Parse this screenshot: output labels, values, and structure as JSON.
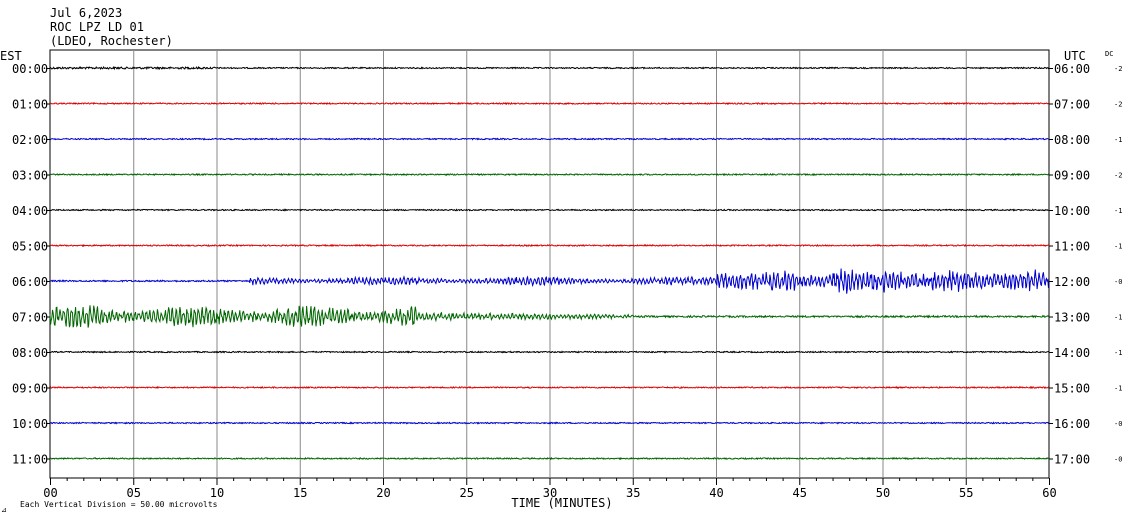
{
  "header": {
    "date": "Jul 6,2023",
    "station": "ROC LPZ LD 01",
    "location": "(LDEO, Rochester)",
    "left_tz": "EST",
    "right_tz": "UTC",
    "dc_label": "DC"
  },
  "footer": {
    "scale_note": "Each Vertical Division =   50.00 microvolts",
    "corner_mark": "⊿"
  },
  "chart_data": {
    "type": "line",
    "title": "",
    "xlabel": "TIME (MINUTES)",
    "ylabel": "",
    "xlim": [
      0,
      60
    ],
    "x_ticks": [
      "00",
      "05",
      "10",
      "15",
      "20",
      "25",
      "30",
      "35",
      "40",
      "45",
      "50",
      "55",
      "60"
    ],
    "grid": true,
    "series_colors": [
      "#000000",
      "#dd0000",
      "#0000cc",
      "#006600"
    ],
    "rows": [
      {
        "est": "00:00",
        "utc": "06:00",
        "dc": "-2",
        "color": "#000000"
      },
      {
        "est": "01:00",
        "utc": "07:00",
        "dc": "-2",
        "color": "#dd0000"
      },
      {
        "est": "02:00",
        "utc": "08:00",
        "dc": "-1",
        "color": "#0000cc"
      },
      {
        "est": "03:00",
        "utc": "09:00",
        "dc": "-2",
        "color": "#006600"
      },
      {
        "est": "04:00",
        "utc": "10:00",
        "dc": "-1",
        "color": "#000000"
      },
      {
        "est": "05:00",
        "utc": "11:00",
        "dc": "-1",
        "color": "#dd0000"
      },
      {
        "est": "06:00",
        "utc": "12:00",
        "dc": "-0",
        "color": "#0000cc"
      },
      {
        "est": "07:00",
        "utc": "13:00",
        "dc": "-1",
        "color": "#006600"
      },
      {
        "est": "08:00",
        "utc": "14:00",
        "dc": "-1",
        "color": "#000000"
      },
      {
        "est": "09:00",
        "utc": "15:00",
        "dc": "-1",
        "color": "#dd0000"
      },
      {
        "est": "10:00",
        "utc": "16:00",
        "dc": "-0",
        "color": "#0000cc"
      },
      {
        "est": "11:00",
        "utc": "17:00",
        "dc": "-0",
        "color": "#006600"
      }
    ]
  }
}
